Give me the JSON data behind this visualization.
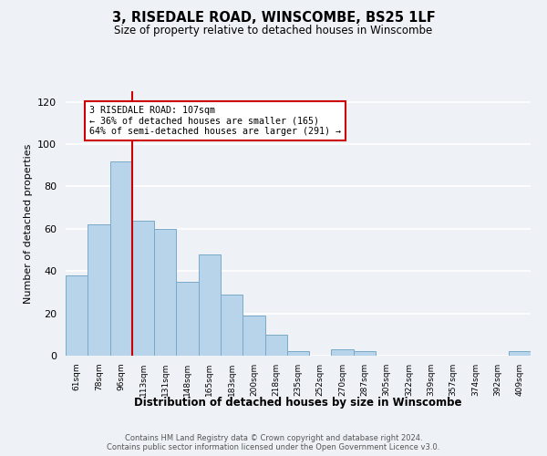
{
  "title": "3, RISEDALE ROAD, WINSCOMBE, BS25 1LF",
  "subtitle": "Size of property relative to detached houses in Winscombe",
  "xlabel": "Distribution of detached houses by size in Winscombe",
  "ylabel": "Number of detached properties",
  "bar_labels": [
    "61sqm",
    "78sqm",
    "96sqm",
    "113sqm",
    "131sqm",
    "148sqm",
    "165sqm",
    "183sqm",
    "200sqm",
    "218sqm",
    "235sqm",
    "252sqm",
    "270sqm",
    "287sqm",
    "305sqm",
    "322sqm",
    "339sqm",
    "357sqm",
    "374sqm",
    "392sqm",
    "409sqm"
  ],
  "bar_values": [
    38,
    62,
    92,
    64,
    60,
    35,
    48,
    29,
    19,
    10,
    2,
    0,
    3,
    2,
    0,
    0,
    0,
    0,
    0,
    0,
    2
  ],
  "bar_color": "#b8d4ea",
  "bar_edge_color": "#7aaac8",
  "vline_x_idx": 2.5,
  "vline_color": "#cc0000",
  "annotation_text": "3 RISEDALE ROAD: 107sqm\n← 36% of detached houses are smaller (165)\n64% of semi-detached houses are larger (291) →",
  "annotation_box_color": "#ffffff",
  "annotation_box_edge_color": "#cc0000",
  "ylim": [
    0,
    125
  ],
  "yticks": [
    0,
    20,
    40,
    60,
    80,
    100,
    120
  ],
  "footer_text": "Contains HM Land Registry data © Crown copyright and database right 2024.\nContains public sector information licensed under the Open Government Licence v3.0.",
  "bg_color": "#eef2f7"
}
